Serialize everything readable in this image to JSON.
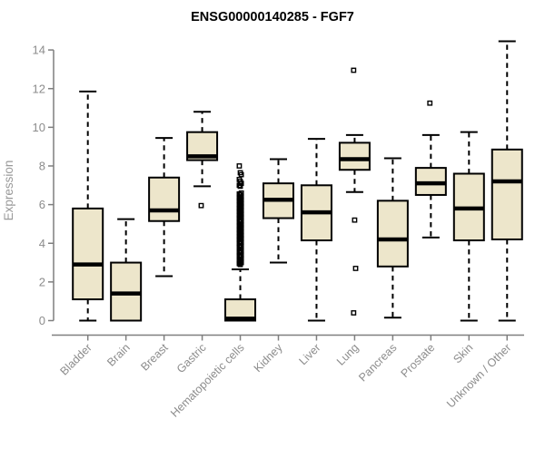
{
  "page": {
    "background": "#ffffff"
  },
  "colors": {
    "box_fill": "#ede6cb",
    "box_border": "#000000",
    "median_line": "#000000",
    "whisker": "#000000",
    "outlier": "#000000",
    "axis_line": "#7f7f7f",
    "tick_label": "#8c8c8c",
    "y_axis_title": "#999999",
    "title": "#000000"
  },
  "chart_data": {
    "type": "boxplot",
    "title": "ENSG00000140285 - FGF7",
    "xlabel": "",
    "ylabel": "Expression",
    "ylim": [
      0,
      14.6
    ],
    "yticks": [
      0,
      2,
      4,
      6,
      8,
      10,
      12,
      14
    ],
    "grid": false,
    "legend_position": "none",
    "x_label_rotation_deg": 45,
    "categories": [
      "Bladder",
      "Brain",
      "Breast",
      "Gastric",
      "Hematopoietic cells",
      "Kidney",
      "Liver",
      "Lung",
      "Pancreas",
      "Prostate",
      "Skin",
      "Unknown / Other"
    ],
    "boxes": [
      {
        "category": "Bladder",
        "whisker_low": 0.0,
        "q1": 1.1,
        "median": 2.9,
        "q3": 5.8,
        "whisker_high": 11.85,
        "outliers": []
      },
      {
        "category": "Brain",
        "whisker_low": 0.0,
        "q1": 0.0,
        "median": 1.4,
        "q3": 3.0,
        "whisker_high": 5.25,
        "outliers": []
      },
      {
        "category": "Breast",
        "whisker_low": 2.3,
        "q1": 5.15,
        "median": 5.7,
        "q3": 7.4,
        "whisker_high": 9.45,
        "outliers": []
      },
      {
        "category": "Gastric",
        "whisker_low": 6.95,
        "q1": 8.3,
        "median": 8.5,
        "q3": 9.75,
        "whisker_high": 10.8,
        "outliers": [
          5.95
        ]
      },
      {
        "category": "Hematopoietic cells",
        "whisker_low": 0.0,
        "q1": 0.0,
        "median": 0.1,
        "q3": 1.1,
        "whisker_high": 2.65,
        "outliers": [
          8.0,
          7.65,
          7.55,
          7.3,
          7.2,
          7.1,
          7.0,
          6.95,
          6.6,
          6.55,
          6.5,
          6.4,
          6.35,
          6.3,
          6.25,
          6.2,
          6.1,
          6.05,
          6.0,
          5.95,
          5.9,
          5.8,
          5.75,
          5.7,
          5.65,
          5.6,
          5.5,
          5.45,
          5.4,
          5.35,
          5.3,
          5.2,
          5.15,
          5.1,
          5.0,
          4.95,
          4.9,
          4.85,
          4.8,
          4.7,
          4.65,
          4.6,
          4.55,
          4.5,
          4.4,
          4.35,
          4.3,
          4.25,
          4.2,
          4.1,
          4.05,
          4.0,
          3.9,
          3.85,
          3.8,
          3.7,
          3.6,
          3.55,
          3.5,
          3.4,
          3.35,
          3.3,
          3.2,
          3.1,
          3.05,
          3.0,
          2.95,
          2.9
        ]
      },
      {
        "category": "Kidney",
        "whisker_low": 3.0,
        "q1": 5.3,
        "median": 6.25,
        "q3": 7.1,
        "whisker_high": 8.35,
        "outliers": []
      },
      {
        "category": "Liver",
        "whisker_low": 0.0,
        "q1": 4.15,
        "median": 5.6,
        "q3": 7.0,
        "whisker_high": 9.4,
        "outliers": []
      },
      {
        "category": "Lung",
        "whisker_low": 6.65,
        "q1": 7.8,
        "median": 8.35,
        "q3": 9.2,
        "whisker_high": 9.6,
        "outliers": [
          12.95,
          5.2,
          2.7,
          0.4
        ]
      },
      {
        "category": "Pancreas",
        "whisker_low": 0.15,
        "q1": 2.8,
        "median": 4.2,
        "q3": 6.2,
        "whisker_high": 8.4,
        "outliers": []
      },
      {
        "category": "Prostate",
        "whisker_low": 4.3,
        "q1": 6.5,
        "median": 7.1,
        "q3": 7.9,
        "whisker_high": 9.6,
        "outliers": [
          11.25
        ]
      },
      {
        "category": "Skin",
        "whisker_low": 0.0,
        "q1": 4.15,
        "median": 5.8,
        "q3": 7.6,
        "whisker_high": 9.75,
        "outliers": []
      },
      {
        "category": "Unknown / Other",
        "whisker_low": 0.0,
        "q1": 4.2,
        "median": 7.2,
        "q3": 8.85,
        "whisker_high": 14.45,
        "outliers": []
      }
    ]
  }
}
